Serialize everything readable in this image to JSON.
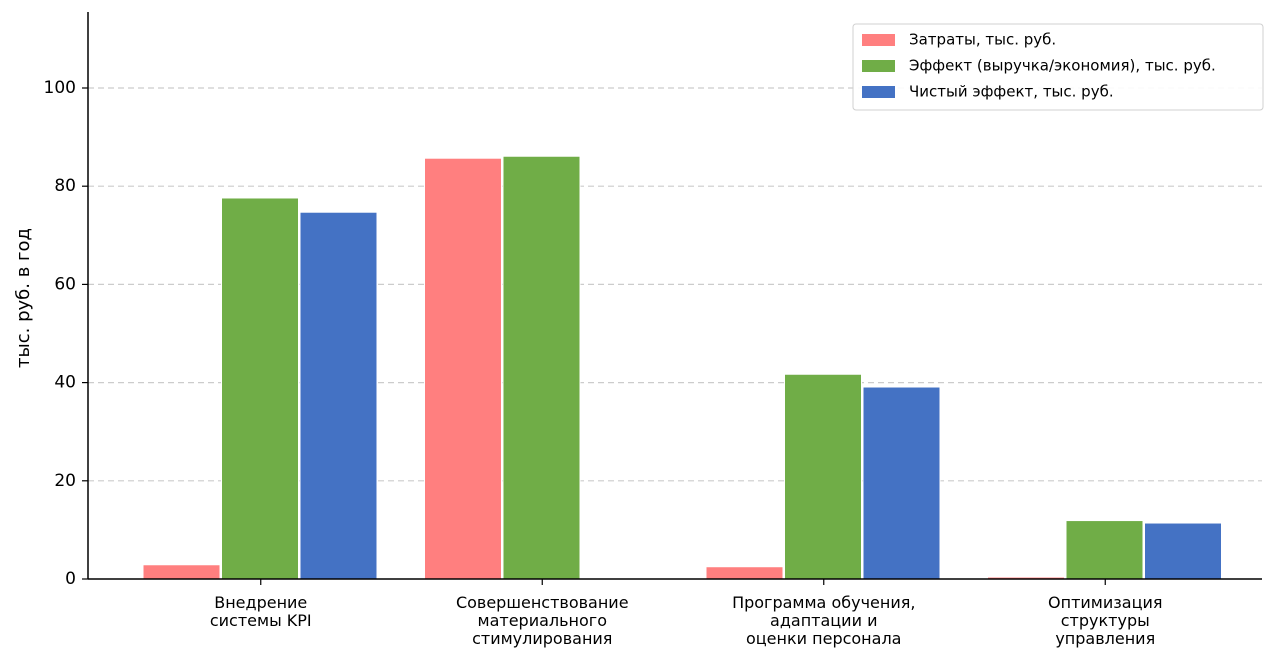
{
  "chart_data": {
    "type": "bar",
    "title": "",
    "xlabel": "",
    "ylabel": "тыс. руб. в год",
    "ylim": [
      0,
      115
    ],
    "yticks": [
      0,
      20,
      40,
      60,
      80,
      100
    ],
    "grid": "horizontal-dashed",
    "legend_position": "top-right",
    "categories": [
      [
        "Внедрение",
        "системы KPI"
      ],
      [
        "Совершенствование",
        "материального",
        "стимулирования"
      ],
      [
        "Программа обучения,",
        "адаптации и",
        "оценки персонала"
      ],
      [
        "Оптимизация",
        "структуры",
        "управления"
      ]
    ],
    "series": [
      {
        "name": "Затраты, тыс. руб.",
        "color": "#ff7f7f",
        "values": [
          2.9,
          85.7,
          2.5,
          0.4
        ]
      },
      {
        "name": "Эффект (выручка/экономия), тыс. руб.",
        "color": "#70ad47",
        "values": [
          77.6,
          86.1,
          41.7,
          11.9
        ]
      },
      {
        "name": "Чистый эффект, тыс. руб.",
        "color": "#4472c4",
        "values": [
          74.7,
          0,
          39.1,
          11.4
        ]
      }
    ]
  }
}
